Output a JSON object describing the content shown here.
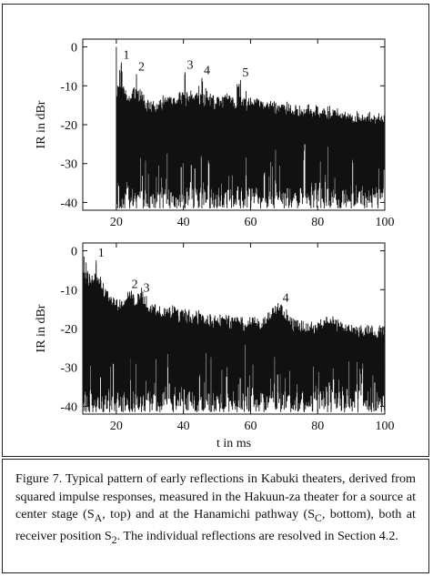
{
  "chart_data": [
    {
      "type": "line",
      "id": "top",
      "xlabel": "",
      "ylabel": "IR in dBr",
      "xlim": [
        10,
        100
      ],
      "ylim": [
        -42,
        2
      ],
      "xticks": [
        20,
        40,
        60,
        80,
        100
      ],
      "yticks": [
        0,
        -10,
        -20,
        -30,
        -40
      ],
      "onset": 20,
      "floor_start": -20,
      "floor_end": -26,
      "reflections": [
        {
          "label": "1",
          "x": 21.5,
          "y": -4
        },
        {
          "label": "2",
          "x": 26,
          "y": -7
        },
        {
          "label": "3",
          "x": 40.5,
          "y": -6.5
        },
        {
          "label": "4",
          "x": 45.5,
          "y": -8
        },
        {
          "label": "5",
          "x": 57,
          "y": -8.5
        }
      ],
      "peaks": [
        [
          20,
          0
        ],
        [
          20.4,
          -10
        ],
        [
          21,
          -6
        ],
        [
          21.5,
          -4
        ],
        [
          22.5,
          -12
        ],
        [
          24,
          -14
        ],
        [
          26,
          -7
        ],
        [
          28,
          -14
        ],
        [
          30,
          -16
        ],
        [
          33,
          -15
        ],
        [
          36,
          -13
        ],
        [
          38,
          -14
        ],
        [
          40.5,
          -6.5
        ],
        [
          43,
          -13
        ],
        [
          45.5,
          -8
        ],
        [
          48,
          -12
        ],
        [
          50,
          -13
        ],
        [
          53,
          -12
        ],
        [
          57,
          -8.5
        ],
        [
          60,
          -13
        ],
        [
          63,
          -14
        ],
        [
          67,
          -14
        ],
        [
          70,
          -15
        ],
        [
          74,
          -16
        ],
        [
          78,
          -16
        ],
        [
          82,
          -17
        ],
        [
          86,
          -17
        ],
        [
          90,
          -18
        ],
        [
          94,
          -18
        ],
        [
          98,
          -18
        ]
      ]
    },
    {
      "type": "line",
      "id": "bottom",
      "xlabel": "t in ms",
      "ylabel": "IR in dBr",
      "xlim": [
        10,
        100
      ],
      "ylim": [
        -42,
        2
      ],
      "xticks": [
        20,
        40,
        60,
        80,
        100
      ],
      "yticks": [
        0,
        -10,
        -20,
        -30,
        -40
      ],
      "onset": 10,
      "floor_start": -15,
      "floor_end": -27,
      "reflections": [
        {
          "label": "1",
          "x": 14,
          "y": -2.5
        },
        {
          "label": "2",
          "x": 24,
          "y": -10.5
        },
        {
          "label": "3",
          "x": 27.5,
          "y": -11.5
        },
        {
          "label": "4",
          "x": 69,
          "y": -14
        }
      ],
      "peaks": [
        [
          10,
          0
        ],
        [
          11,
          -3
        ],
        [
          12,
          -6
        ],
        [
          13,
          -8
        ],
        [
          14,
          -2.5
        ],
        [
          16,
          -10
        ],
        [
          18,
          -13
        ],
        [
          20,
          -14
        ],
        [
          22,
          -15
        ],
        [
          24,
          -10.5
        ],
        [
          25.5,
          -14
        ],
        [
          27.5,
          -11.5
        ],
        [
          30,
          -15
        ],
        [
          33,
          -16
        ],
        [
          37,
          -16
        ],
        [
          40,
          -17
        ],
        [
          44,
          -17
        ],
        [
          48,
          -18
        ],
        [
          52,
          -18
        ],
        [
          56,
          -19
        ],
        [
          60,
          -19
        ],
        [
          64,
          -19
        ],
        [
          69,
          -14
        ],
        [
          72,
          -19
        ],
        [
          76,
          -20
        ],
        [
          80,
          -20
        ],
        [
          84,
          -18
        ],
        [
          88,
          -20
        ],
        [
          92,
          -21
        ],
        [
          96,
          -21
        ],
        [
          99,
          -21
        ]
      ]
    }
  ],
  "caption": "Figure 7. Typical pattern of early reflections in Kabuki theaters, derived from squared impulse responses, measured in the Hakuun-za theater for a source at center stage (S",
  "caption_parts": {
    "p1": "Figure 7. Typical pattern of early reflections in Kabuki theaters, derived from squared impulse responses, measured in the Hakuun-za theater for a source at center stage (S",
    "sub1": "A",
    "p2": ", top) and at the Hanamichi pathway (S",
    "sub2": "C",
    "p3": ", bottom), both at receiver position S",
    "sub3": "2",
    "p4": ". The individual reflections are resolved in Section 4.2."
  },
  "colors": {
    "trace": "#111111",
    "axis": "#111111"
  }
}
